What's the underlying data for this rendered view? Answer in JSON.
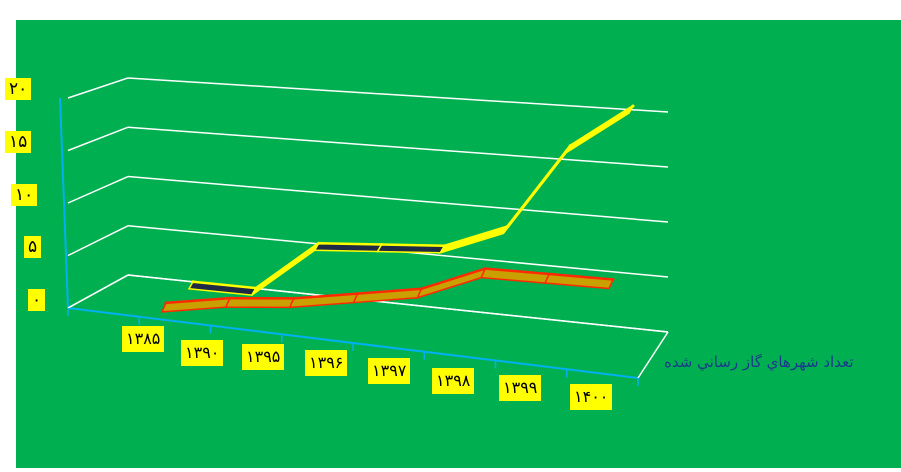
{
  "colors": {
    "plot_background": "#00b050",
    "gridline": "#ffffff",
    "axis": "#00b0f0",
    "label_background": "#ffff00",
    "series_back_face": "#ffff00",
    "series_back_dark": "#1f2a44",
    "series_front_face": "#c8a100",
    "series_front_edge": "#ff2a00",
    "series_label_color": "#1b3a8c"
  },
  "chart_data": {
    "type": "line",
    "view": "3d",
    "categories": [
      "۱۳۸۵",
      "۱۳۹۰",
      "۱۳۹۵",
      "۱۳۹۶",
      "۱۳۹۷",
      "۱۳۹۸",
      "۱۳۹۹",
      "۱۴۰۰"
    ],
    "y_ticks": [
      "۰",
      "۵",
      "۱۰",
      "۱۵",
      "۲۰"
    ],
    "ylim": [
      0,
      20
    ],
    "grid": true,
    "series": [
      {
        "name": "تعداد شهرهاي گاز رساني شده",
        "depth": "front",
        "values": [
          0.5,
          1,
          1,
          1.5,
          2,
          4,
          3.5,
          3
        ]
      },
      {
        "depth": "back",
        "values": [
          1,
          0.5,
          5,
          5,
          5,
          7,
          15,
          19
        ]
      }
    ]
  }
}
